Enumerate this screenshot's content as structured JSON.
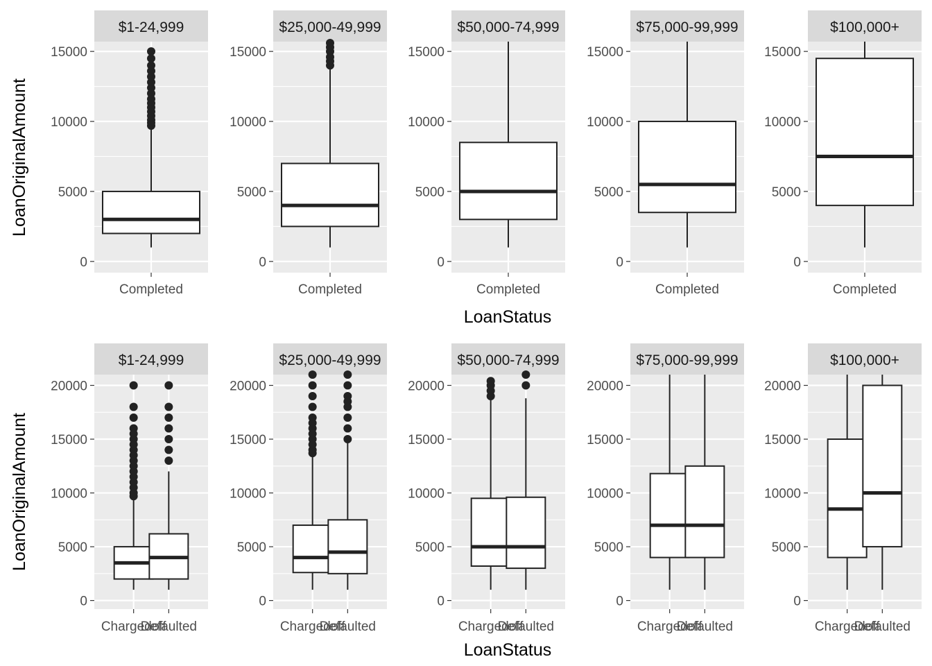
{
  "chart_data": [
    {
      "type": "boxplot",
      "xlabel": "LoanStatus",
      "ylabel": "LoanOriginalAmount",
      "ylim": [
        -800,
        15700
      ],
      "yticks": [
        0,
        5000,
        10000,
        15000
      ],
      "facets": [
        {
          "label": "$1-24,999",
          "categories": [
            "Completed"
          ],
          "boxes": [
            {
              "category": "Completed",
              "whisker_low": 1000,
              "q1": 2000,
              "median": 3000,
              "q3": 5000,
              "whisker_high": 9500,
              "outliers": [
                9700,
                9900,
                10100,
                10400,
                10700,
                11000,
                11300,
                11600,
                12000,
                12400,
                12800,
                13200,
                13600,
                14000,
                14500,
                15000
              ]
            }
          ]
        },
        {
          "label": "$25,000-49,999",
          "categories": [
            "Completed"
          ],
          "boxes": [
            {
              "category": "Completed",
              "whisker_low": 1000,
              "q1": 2500,
              "median": 4000,
              "q3": 7000,
              "whisker_high": 13800,
              "outliers": [
                14000,
                14300,
                14600,
                15000,
                15300,
                15600
              ]
            }
          ]
        },
        {
          "label": "$50,000-74,999",
          "categories": [
            "Completed"
          ],
          "boxes": [
            {
              "category": "Completed",
              "whisker_low": 1000,
              "q1": 3000,
              "median": 5000,
              "q3": 8500,
              "whisker_high": 15700,
              "outliers": []
            }
          ]
        },
        {
          "label": "$75,000-99,999",
          "categories": [
            "Completed"
          ],
          "boxes": [
            {
              "category": "Completed",
              "whisker_low": 1000,
              "q1": 3500,
              "median": 5500,
              "q3": 10000,
              "whisker_high": 15700,
              "outliers": []
            }
          ]
        },
        {
          "label": "$100,000+",
          "categories": [
            "Completed"
          ],
          "boxes": [
            {
              "category": "Completed",
              "whisker_low": 1000,
              "q1": 4000,
              "median": 7500,
              "q3": 14500,
              "whisker_high": 15700,
              "outliers": []
            }
          ]
        }
      ]
    },
    {
      "type": "boxplot",
      "xlabel": "LoanStatus",
      "ylabel": "LoanOriginalAmount",
      "ylim": [
        -800,
        21000
      ],
      "yticks": [
        0,
        5000,
        10000,
        15000,
        20000
      ],
      "facets": [
        {
          "label": "$1-24,999",
          "categories": [
            "Chargedoff",
            "Defaulted"
          ],
          "boxes": [
            {
              "category": "Chargedoff",
              "whisker_low": 1000,
              "q1": 2000,
              "median": 3500,
              "q3": 5000,
              "whisker_high": 9500,
              "outliers": [
                9700,
                10000,
                10500,
                11000,
                11500,
                12000,
                12500,
                13000,
                13500,
                14000,
                14500,
                15000,
                15500,
                16000,
                17000,
                18000,
                20000
              ]
            },
            {
              "category": "Defaulted",
              "whisker_low": 1000,
              "q1": 2000,
              "median": 4000,
              "q3": 6200,
              "whisker_high": 12000,
              "outliers": [
                13000,
                14000,
                15000,
                16000,
                17000,
                18000,
                20000
              ]
            }
          ]
        },
        {
          "label": "$25,000-49,999",
          "categories": [
            "Chargedoff",
            "Defaulted"
          ],
          "boxes": [
            {
              "category": "Chargedoff",
              "whisker_low": 1000,
              "q1": 2600,
              "median": 4000,
              "q3": 7000,
              "whisker_high": 13500,
              "outliers": [
                13700,
                14000,
                14500,
                15000,
                15500,
                16000,
                16500,
                17000,
                18000,
                19000,
                20000,
                21000
              ]
            },
            {
              "category": "Defaulted",
              "whisker_low": 1000,
              "q1": 2500,
              "median": 4500,
              "q3": 7500,
              "whisker_high": 14700,
              "outliers": [
                15000,
                16000,
                17000,
                18000,
                18500,
                19000,
                20000,
                21000
              ]
            }
          ]
        },
        {
          "label": "$50,000-74,999",
          "categories": [
            "Chargedoff",
            "Defaulted"
          ],
          "boxes": [
            {
              "category": "Chargedoff",
              "whisker_low": 1000,
              "q1": 3200,
              "median": 5000,
              "q3": 9500,
              "whisker_high": 18700,
              "outliers": [
                19000,
                19500,
                20000,
                20400
              ]
            },
            {
              "category": "Defaulted",
              "whisker_low": 1000,
              "q1": 3000,
              "median": 5000,
              "q3": 9600,
              "whisker_high": 18800,
              "outliers": [
                20000,
                21000
              ]
            }
          ]
        },
        {
          "label": "$75,000-99,999",
          "categories": [
            "Chargedoff",
            "Defaulted"
          ],
          "boxes": [
            {
              "category": "Chargedoff",
              "whisker_low": 1000,
              "q1": 4000,
              "median": 7000,
              "q3": 11800,
              "whisker_high": 21000,
              "outliers": []
            },
            {
              "category": "Defaulted",
              "whisker_low": 1000,
              "q1": 4000,
              "median": 7000,
              "q3": 12500,
              "whisker_high": 21000,
              "outliers": []
            }
          ]
        },
        {
          "label": "$100,000+",
          "categories": [
            "Chargedoff",
            "Defaulted"
          ],
          "boxes": [
            {
              "category": "Chargedoff",
              "whisker_low": 1000,
              "q1": 4000,
              "median": 8500,
              "q3": 15000,
              "whisker_high": 21000,
              "outliers": []
            },
            {
              "category": "Defaulted",
              "whisker_low": 1000,
              "q1": 5000,
              "median": 10000,
              "q3": 20000,
              "whisker_high": 21000,
              "outliers": []
            }
          ]
        }
      ]
    }
  ]
}
